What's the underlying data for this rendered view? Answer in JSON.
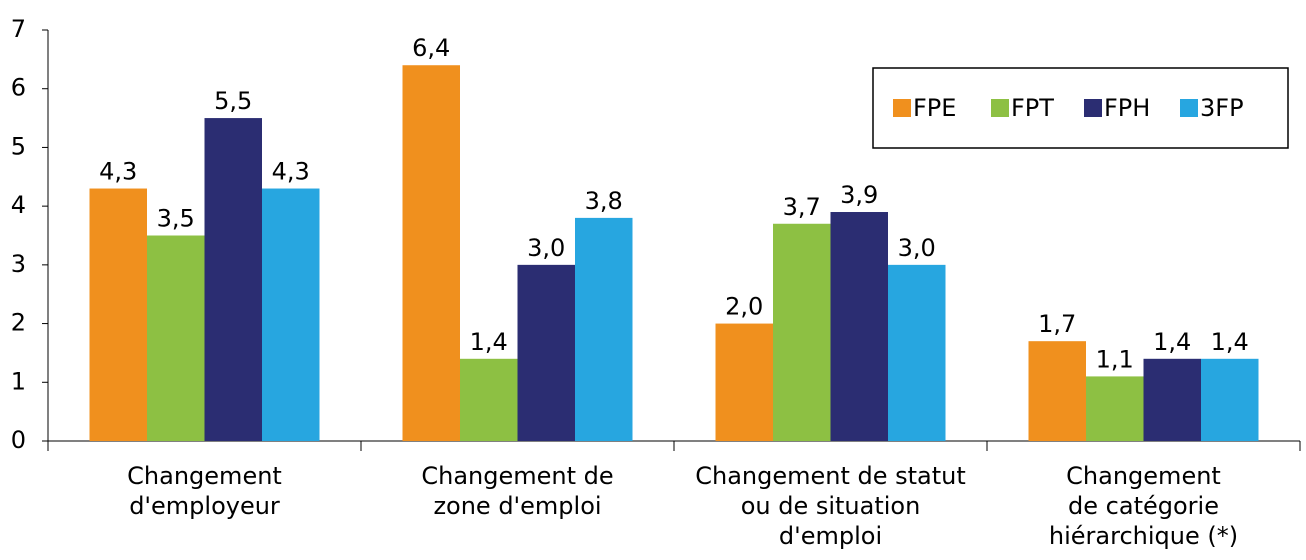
{
  "chart_data": {
    "type": "bar",
    "categories": [
      [
        "Changement",
        "d'employeur"
      ],
      [
        "Changement de",
        "zone d'emploi"
      ],
      [
        "Changement de statut",
        "ou de situation",
        "d'emploi"
      ],
      [
        "Changement",
        "de catégorie",
        "hiérarchique (*)"
      ]
    ],
    "series": [
      {
        "name": "FPE",
        "color": "#f0901e",
        "values": [
          4.3,
          6.4,
          2.0,
          1.7
        ],
        "value_labels": [
          "4,3",
          "6,4",
          "2,0",
          "1,7"
        ]
      },
      {
        "name": "FPT",
        "color": "#8dc043",
        "values": [
          3.5,
          1.4,
          3.7,
          1.1
        ],
        "value_labels": [
          "3,5",
          "1,4",
          "3,7",
          "1,1"
        ]
      },
      {
        "name": "FPH",
        "color": "#2b2d72",
        "values": [
          5.5,
          3.0,
          3.9,
          1.4
        ],
        "value_labels": [
          "5,5",
          "3,0",
          "3,9",
          "1,4"
        ]
      },
      {
        "name": "3FP",
        "color": "#27a6e0",
        "values": [
          4.3,
          3.8,
          3.0,
          1.4
        ],
        "value_labels": [
          "4,3",
          "3,8",
          "3,0",
          "1,4"
        ]
      }
    ],
    "ylim": [
      0,
      7
    ],
    "yticks": [
      0,
      1,
      2,
      3,
      4,
      5,
      6,
      7
    ],
    "legend": "upper right"
  }
}
